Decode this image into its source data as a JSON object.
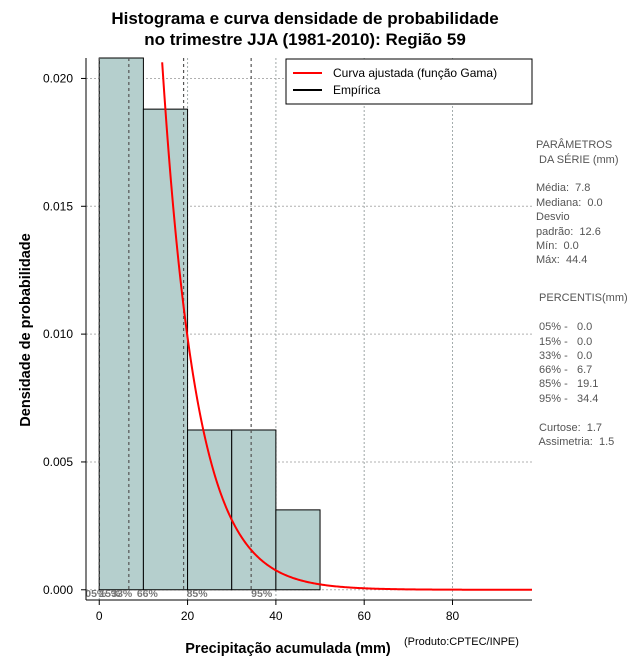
{
  "chart_data": {
    "type": "bar",
    "title_line1": "Histograma e curva densidade de probabilidade",
    "title_line2": "no trimestre JJA (1981-2010): Região 59",
    "xlabel": "Precipitação acumulada (mm)",
    "ylabel": "Densidade de probabilidade",
    "credit": "(Produto:CPTEC/INPE)",
    "xlim": [
      -3,
      98
    ],
    "ylim": [
      -0.0004,
      0.0208
    ],
    "x_ticks": [
      "0",
      "20",
      "40",
      "60",
      "80"
    ],
    "y_ticks": [
      "0.000",
      "0.005",
      "0.010",
      "0.015",
      "0.020"
    ],
    "bins": [
      {
        "from": 0,
        "to": 10,
        "density": 0.0208
      },
      {
        "from": 10,
        "to": 20,
        "density": 0.0188
      },
      {
        "from": 20,
        "to": 30,
        "density": 0.00625
      },
      {
        "from": 30,
        "to": 40,
        "density": 0.00625
      },
      {
        "from": 40,
        "to": 50,
        "density": 0.003125
      }
    ],
    "legend": [
      "Curva ajustada (função Gama)",
      "Empírica"
    ],
    "fitted_curve": {
      "distribution": "gamma",
      "shape": 1.0,
      "scale": 7.8,
      "color": "#ff0000"
    },
    "percentile_lines": [
      {
        "label": "05%",
        "value": 0.0
      },
      {
        "label": "15%",
        "value": 0.0
      },
      {
        "label": "33%",
        "value": 0.0
      },
      {
        "label": "66%",
        "value": 6.7
      },
      {
        "label": "85%",
        "value": 19.1
      },
      {
        "label": "95%",
        "value": 34.4
      }
    ],
    "bar_color": "#b5cfcd",
    "grid": true
  },
  "side_panel": {
    "params_title1": "PARÂMETROS",
    "params_title2": " DA SÉRIE (mm)",
    "media": "Média:  7.8",
    "mediana": "Mediana:  0.0",
    "desvio1": "Desvio",
    "desvio2": "padrão:  12.6",
    "min": "Mín:  0.0",
    "max": "Máx:  44.4",
    "percentis_title": " PERCENTIS(mm)",
    "p05": " 05% -   0.0",
    "p15": " 15% -   0.0",
    "p33": " 33% -   0.0",
    "p66": " 66% -   6.7",
    "p85": " 85% -   19.1",
    "p95": " 95% -   34.4",
    "curtose": " Curtose:  1.7",
    "assimetria": " Assimetria:  1.5"
  }
}
